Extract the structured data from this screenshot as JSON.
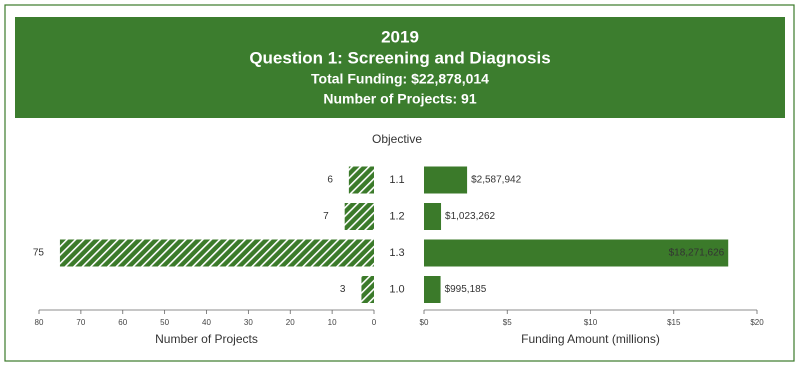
{
  "header": {
    "year": "2019",
    "title": "Question 1: Screening and Diagnosis",
    "total_funding": "Total Funding: $22,878,014",
    "projects": "Number of Projects: 91"
  },
  "chart_data": {
    "type": "butterfly",
    "category_label": "Objective",
    "categories": [
      "1.1",
      "1.2",
      "1.3",
      "1.0"
    ],
    "series": [
      {
        "name": "Number of Projects",
        "color": "#3b7a2a",
        "pattern": "hatch",
        "values": [
          6,
          7,
          75,
          3
        ],
        "xlim": [
          80,
          0
        ],
        "xticks": [
          80,
          70,
          60,
          50,
          40,
          30,
          20,
          10,
          0
        ]
      },
      {
        "name": "Funding Amount (millions)",
        "color": "#3b7a2a",
        "pattern": "solid",
        "values": [
          2.587942,
          1.023262,
          18.271626,
          0.995185
        ],
        "value_labels": [
          "$2,587,942",
          "$1,023,262",
          "$18,271,626",
          "$995,185"
        ],
        "xlim": [
          0,
          20
        ],
        "xticks": [
          {
            "value": 0,
            "label": "$0"
          },
          {
            "value": 5,
            "label": "$5"
          },
          {
            "value": 10,
            "label": "$10"
          },
          {
            "value": 15,
            "label": "$15"
          },
          {
            "value": 20,
            "label": "$20"
          }
        ]
      }
    ]
  }
}
